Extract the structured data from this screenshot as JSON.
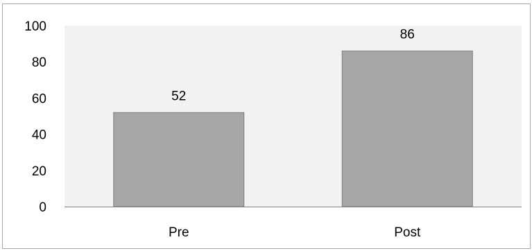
{
  "chart_data": {
    "type": "bar",
    "categories": [
      "Pre",
      "Post"
    ],
    "values": [
      52,
      86
    ],
    "data_labels": [
      "52",
      "86"
    ],
    "title": "",
    "xlabel": "",
    "ylabel": "",
    "ylim": [
      0,
      100
    ],
    "yticks": [
      0,
      20,
      40,
      60,
      80,
      100
    ],
    "ytick_labels": [
      "0",
      "20",
      "40",
      "60",
      "80",
      "100"
    ],
    "grid": false,
    "legend": "none",
    "colors": {
      "bar_fill": "#a6a6a6",
      "bar_stroke": "#7f7f7f",
      "plot_background": "#f2f2f2",
      "axis_line": "#7f7f7f",
      "frame_border": "#a6a6a6"
    }
  }
}
